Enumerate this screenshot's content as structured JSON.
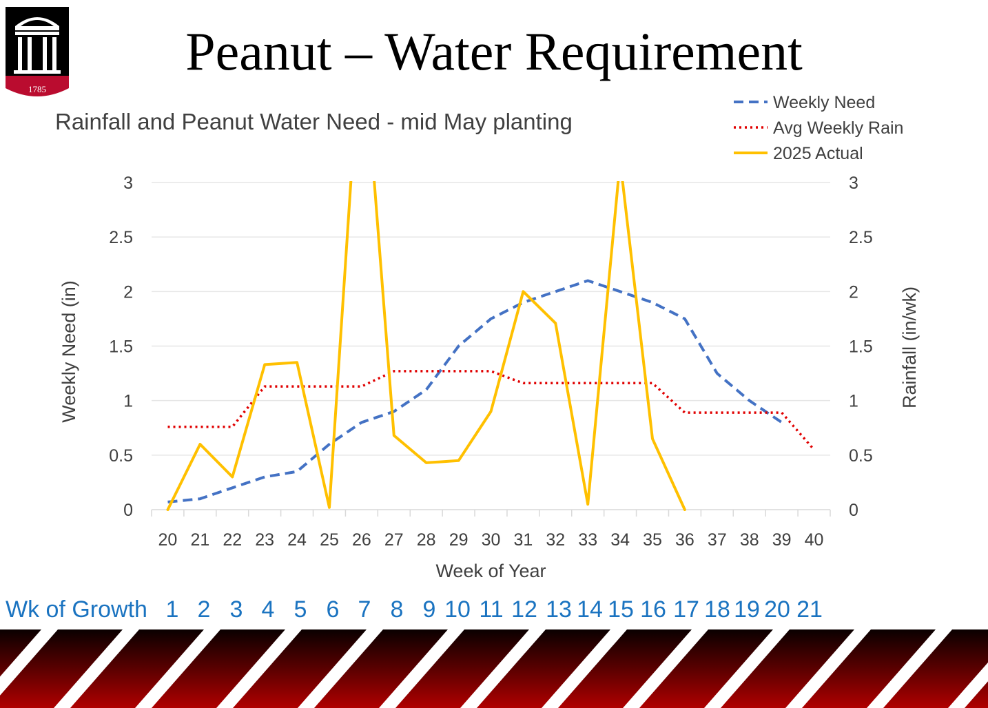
{
  "slide": {
    "title": "Peanut – Water Requirement",
    "logo_year": "1785"
  },
  "colors": {
    "weekly_need": "#4472c4",
    "avg_weekly_rain": "#e00000",
    "actual_2025": "#ffc000",
    "growth_text": "#1a73c0",
    "band_dark": "#1a0000",
    "band_red": "#b00000"
  },
  "chart_data": {
    "type": "line",
    "title": "Rainfall and Peanut Water Need - mid May planting",
    "xlabel": "Week of Year",
    "ylabel": "Weekly Need  (in)",
    "y2label": "Rainfall  (in/wk)",
    "ylim": [
      0,
      3
    ],
    "yticks": [
      "0",
      "0.5",
      "1",
      "1.5",
      "2",
      "2.5",
      "3"
    ],
    "y2ticks": [
      "0",
      "0.5",
      "1",
      "1.5",
      "2",
      "2.5",
      "3"
    ],
    "categories": [
      "20",
      "21",
      "22",
      "23",
      "24",
      "25",
      "26",
      "27",
      "28",
      "29",
      "30",
      "31",
      "32",
      "33",
      "34",
      "35",
      "36",
      "37",
      "38",
      "39",
      "40"
    ],
    "grid": true,
    "legend_position": "top-right",
    "series": [
      {
        "name": "Weekly Need",
        "style": "dashed",
        "axis": "left",
        "values": [
          0.07,
          0.1,
          0.2,
          0.3,
          0.35,
          0.6,
          0.8,
          0.9,
          1.1,
          1.5,
          1.75,
          1.9,
          2.0,
          2.1,
          2.0,
          1.9,
          1.75,
          1.25,
          1.0,
          0.8,
          null
        ]
      },
      {
        "name": "Avg Weekly Rain",
        "style": "dotted",
        "axis": "right",
        "values": [
          0.76,
          0.76,
          0.76,
          1.13,
          1.13,
          1.13,
          1.13,
          1.27,
          1.27,
          1.27,
          1.27,
          1.16,
          1.16,
          1.16,
          1.16,
          1.16,
          0.89,
          0.89,
          0.89,
          0.89,
          0.55
        ]
      },
      {
        "name": "2025 Actual",
        "style": "solid",
        "axis": "right",
        "values": [
          0.0,
          0.6,
          0.3,
          1.33,
          1.35,
          0.02,
          4.5,
          0.68,
          0.43,
          0.45,
          0.9,
          2.0,
          1.71,
          0.05,
          3.2,
          0.65,
          0.0,
          null,
          null,
          null,
          null
        ]
      }
    ]
  },
  "growth_row": {
    "label": "Wk of Growth",
    "weeks": [
      "1",
      "2",
      "3",
      "4",
      "5",
      "6",
      "7",
      "8",
      "9",
      "10",
      "11",
      "12",
      "13",
      "14",
      "15",
      "16",
      "17",
      "18",
      "19",
      "20",
      "21"
    ]
  }
}
